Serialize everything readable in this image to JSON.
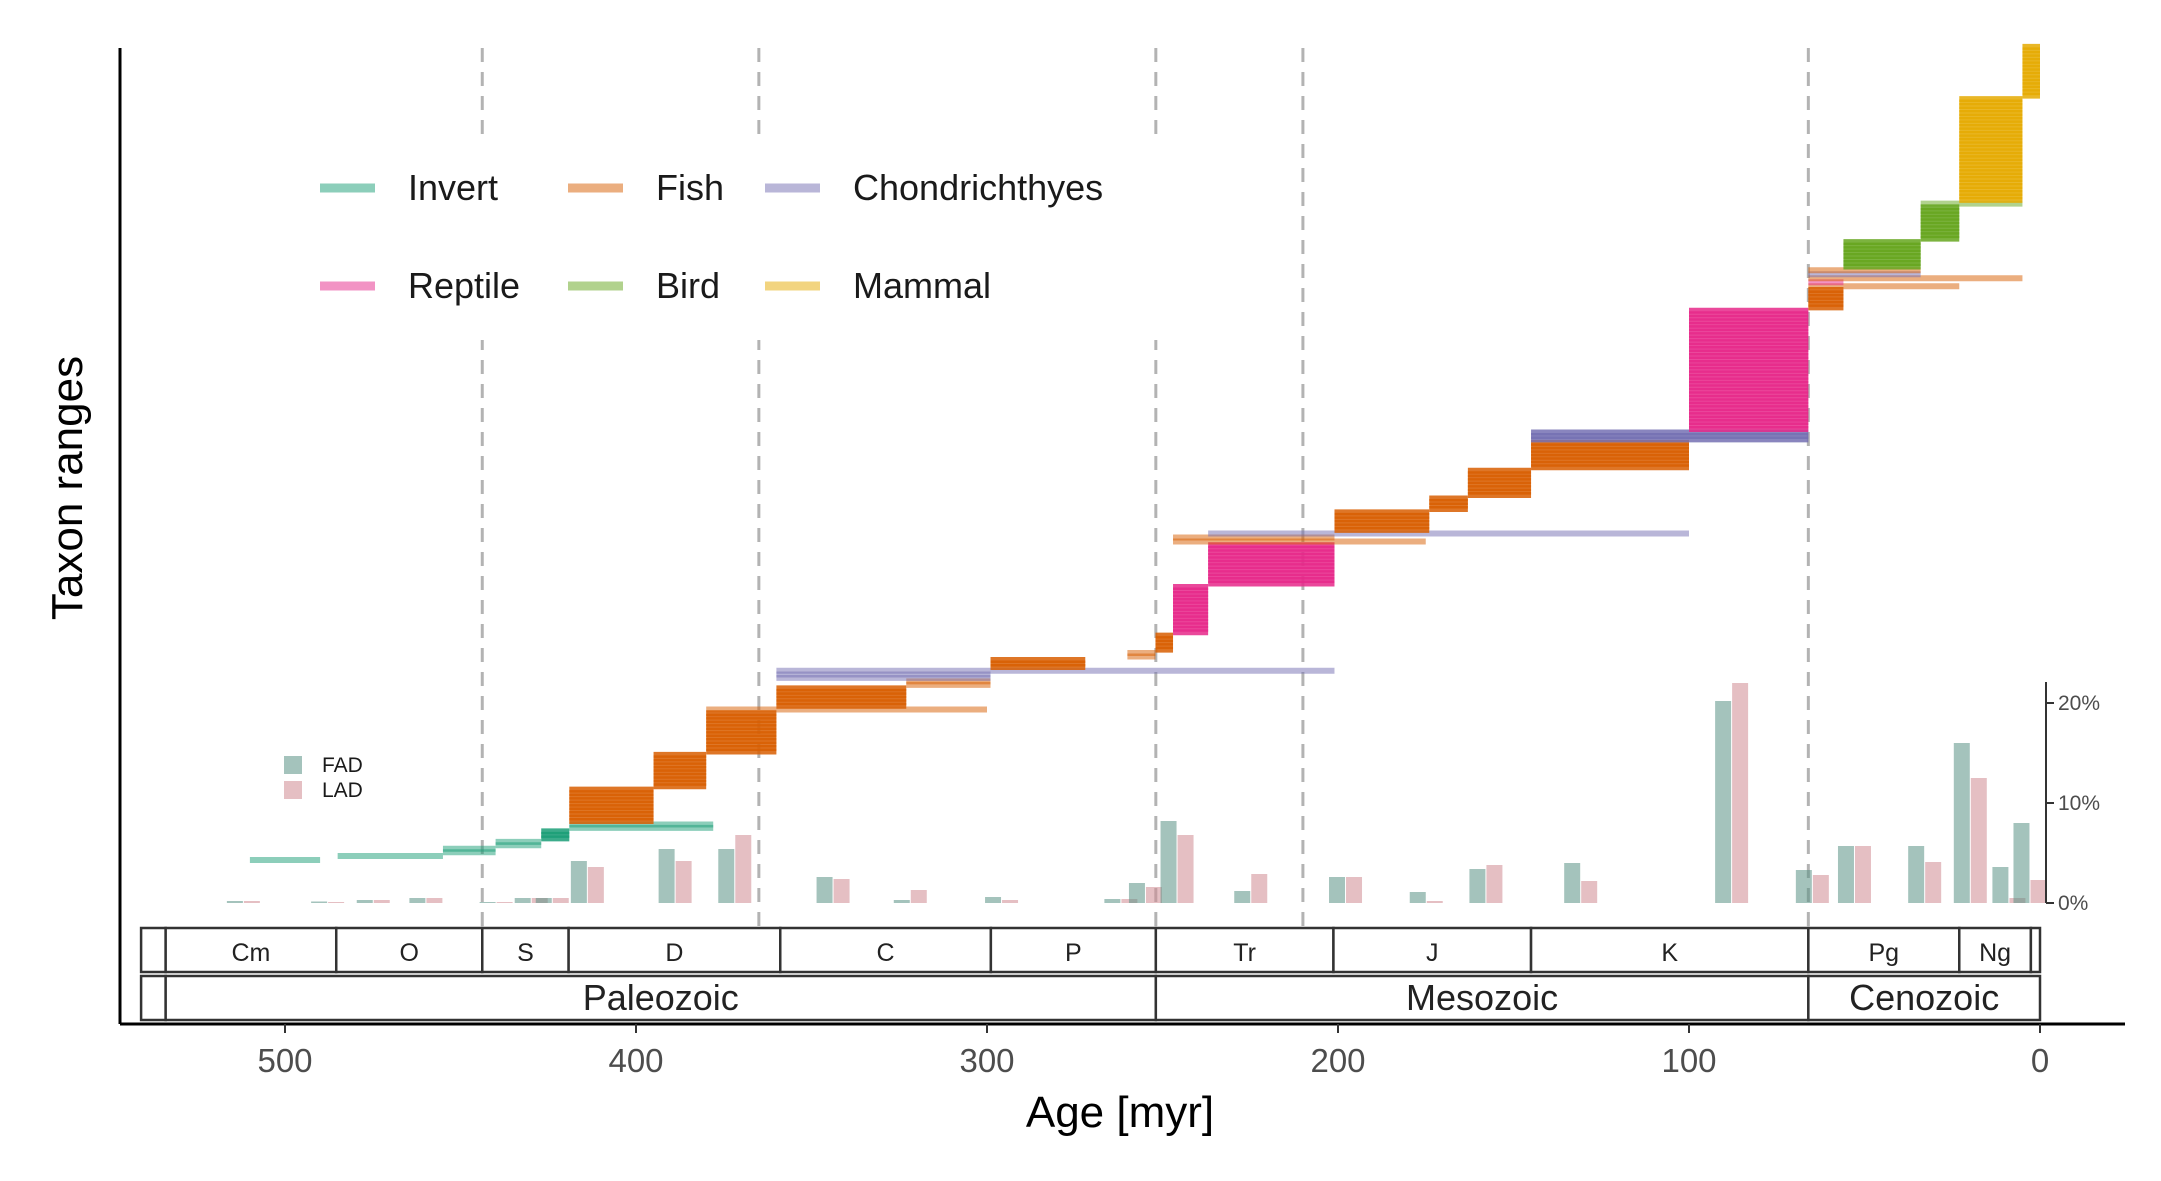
{
  "chart_data": {
    "type": "bar",
    "title": "",
    "xlabel": "Age [myr]",
    "ylabel": "Taxon ranges",
    "xlim": [
      545,
      -26
    ],
    "x_ticks": [
      500,
      400,
      300,
      200,
      100,
      0
    ],
    "grid": false,
    "mass_extinction_lines": [
      443.8,
      365,
      251.9,
      210,
      66
    ],
    "legend": {
      "placement": "top-left",
      "entries": [
        {
          "name": "Invert",
          "color": "#1b9e77"
        },
        {
          "name": "Fish",
          "color": "#d95f02"
        },
        {
          "name": "Chondrichthyes",
          "color": "#7570b3"
        },
        {
          "name": "Reptile",
          "color": "#e7298a"
        },
        {
          "name": "Bird",
          "color": "#66a61e"
        },
        {
          "name": "Mammal",
          "color": "#e6ab02"
        }
      ]
    },
    "ranges": [
      {
        "group": "Invert",
        "start": 510,
        "end": 490,
        "count": 1
      },
      {
        "group": "Invert",
        "start": 485,
        "end": 455,
        "count": 1
      },
      {
        "group": "Invert",
        "start": 455,
        "end": 440,
        "count": 2
      },
      {
        "group": "Invert",
        "start": 440,
        "end": 427,
        "count": 2
      },
      {
        "group": "Invert",
        "start": 427,
        "end": 419,
        "count": 3
      },
      {
        "group": "Invert",
        "start": 419,
        "end": 378,
        "count": 2
      },
      {
        "group": "Fish",
        "start": 419,
        "end": 395,
        "count": 10
      },
      {
        "group": "Fish",
        "start": 395,
        "end": 380,
        "count": 10
      },
      {
        "group": "Fish",
        "start": 380,
        "end": 360,
        "count": 12
      },
      {
        "group": "Fish",
        "start": 380,
        "end": 300,
        "count": 1
      },
      {
        "group": "Fish",
        "start": 360,
        "end": 323,
        "count": 6
      },
      {
        "group": "Fish",
        "start": 323,
        "end": 299,
        "count": 2
      },
      {
        "group": "Chondrichthyes",
        "start": 360,
        "end": 299,
        "count": 2
      },
      {
        "group": "Chondrichthyes",
        "start": 360,
        "end": 201,
        "count": 1
      },
      {
        "group": "Fish",
        "start": 299,
        "end": 272,
        "count": 3
      },
      {
        "group": "Fish",
        "start": 260,
        "end": 252,
        "count": 2
      },
      {
        "group": "Fish",
        "start": 252,
        "end": 247,
        "count": 5
      },
      {
        "group": "Reptile",
        "start": 247,
        "end": 237,
        "count": 14
      },
      {
        "group": "Reptile",
        "start": 237,
        "end": 201,
        "count": 12
      },
      {
        "group": "Fish",
        "start": 247,
        "end": 175,
        "count": 1
      },
      {
        "group": "Fish",
        "start": 247,
        "end": 201,
        "count": 1
      },
      {
        "group": "Chondrichthyes",
        "start": 237,
        "end": 100,
        "count": 1
      },
      {
        "group": "Fish",
        "start": 201,
        "end": 174,
        "count": 6
      },
      {
        "group": "Fish",
        "start": 174,
        "end": 163,
        "count": 4
      },
      {
        "group": "Fish",
        "start": 163,
        "end": 145,
        "count": 8
      },
      {
        "group": "Fish",
        "start": 145,
        "end": 100,
        "count": 8
      },
      {
        "group": "Chondrichthyes",
        "start": 145,
        "end": 66,
        "count": 3
      },
      {
        "group": "Reptile",
        "start": 100,
        "end": 66,
        "count": 35
      },
      {
        "group": "Fish",
        "start": 66,
        "end": 56,
        "count": 6
      },
      {
        "group": "Fish",
        "start": 66,
        "end": 23,
        "count": 1
      },
      {
        "group": "Reptile",
        "start": 66,
        "end": 56,
        "count": 1
      },
      {
        "group": "Fish",
        "start": 66,
        "end": 5,
        "count": 1
      },
      {
        "group": "Chondrichthyes",
        "start": 66,
        "end": 34,
        "count": 1
      },
      {
        "group": "Fish",
        "start": 66,
        "end": 34,
        "count": 1
      },
      {
        "group": "Bird",
        "start": 56,
        "end": 34,
        "count": 8
      },
      {
        "group": "Bird",
        "start": 34,
        "end": 23,
        "count": 10
      },
      {
        "group": "Bird",
        "start": 34,
        "end": 5,
        "count": 1
      },
      {
        "group": "Mammal",
        "start": 23,
        "end": 5,
        "count": 30
      },
      {
        "group": "Mammal",
        "start": 5,
        "end": 0,
        "count": 15
      }
    ],
    "periods": [
      {
        "label": "",
        "start": 541,
        "end": 534
      },
      {
        "label": "Cm",
        "start": 534,
        "end": 485.4
      },
      {
        "label": "O",
        "start": 485.4,
        "end": 443.8
      },
      {
        "label": "S",
        "start": 443.8,
        "end": 419.2
      },
      {
        "label": "D",
        "start": 419.2,
        "end": 358.9
      },
      {
        "label": "C",
        "start": 358.9,
        "end": 298.9
      },
      {
        "label": "P",
        "start": 298.9,
        "end": 251.9
      },
      {
        "label": "Tr",
        "start": 251.9,
        "end": 201.3
      },
      {
        "label": "J",
        "start": 201.3,
        "end": 145
      },
      {
        "label": "K",
        "start": 145,
        "end": 66
      },
      {
        "label": "Pg",
        "start": 66,
        "end": 23
      },
      {
        "label": "Ng",
        "start": 23,
        "end": 2.6
      },
      {
        "label": "",
        "start": 2.6,
        "end": 0
      }
    ],
    "eras": [
      {
        "label": "",
        "start": 541,
        "end": 534
      },
      {
        "label": "Paleozoic",
        "start": 534,
        "end": 251.9
      },
      {
        "label": "Mesozoic",
        "start": 251.9,
        "end": 66
      },
      {
        "label": "Cenozoic",
        "start": 66,
        "end": 0
      }
    ],
    "histogram": {
      "secondary_axis_ticks": [
        "0%",
        "10%",
        "20%"
      ],
      "ylim": [
        0,
        22
      ],
      "series": [
        {
          "name": "FAD",
          "color": "#5a9185"
        },
        {
          "name": "LAD",
          "color": "#cf8a92"
        }
      ],
      "bins": [
        {
          "age": 512,
          "FAD": 0.2,
          "LAD": 0.2
        },
        {
          "age": 488,
          "FAD": 0.15,
          "LAD": 0.1
        },
        {
          "age": 475,
          "FAD": 0.3,
          "LAD": 0.3
        },
        {
          "age": 460,
          "FAD": 0.5,
          "LAD": 0.5
        },
        {
          "age": 440,
          "FAD": 0.1,
          "LAD": 0.1
        },
        {
          "age": 430,
          "FAD": 0.5,
          "LAD": 0.5
        },
        {
          "age": 424,
          "FAD": 0.5,
          "LAD": 0.5
        },
        {
          "age": 414,
          "FAD": 4.2,
          "LAD": 3.6
        },
        {
          "age": 389,
          "FAD": 5.4,
          "LAD": 4.2
        },
        {
          "age": 372,
          "FAD": 5.4,
          "LAD": 6.8
        },
        {
          "age": 344,
          "FAD": 2.6,
          "LAD": 2.4
        },
        {
          "age": 322,
          "FAD": 0.3,
          "LAD": 1.3
        },
        {
          "age": 296,
          "FAD": 0.6,
          "LAD": 0.3
        },
        {
          "age": 262,
          "FAD": 0.4,
          "LAD": 0.4
        },
        {
          "age": 255,
          "FAD": 2.0,
          "LAD": 1.6
        },
        {
          "age": 246,
          "FAD": 8.2,
          "LAD": 6.8
        },
        {
          "age": 225,
          "FAD": 1.2,
          "LAD": 2.9
        },
        {
          "age": 198,
          "FAD": 2.6,
          "LAD": 2.6
        },
        {
          "age": 175,
          "FAD": 1.1,
          "LAD": 0.2
        },
        {
          "age": 158,
          "FAD": 3.4,
          "LAD": 3.8
        },
        {
          "age": 131,
          "FAD": 4.0,
          "LAD": 2.2
        },
        {
          "age": 88,
          "FAD": 20.2,
          "LAD": 22.0
        },
        {
          "age": 65,
          "FAD": 3.3,
          "LAD": 2.8
        },
        {
          "age": 53,
          "FAD": 5.7,
          "LAD": 5.7
        },
        {
          "age": 33,
          "FAD": 5.7,
          "LAD": 4.1
        },
        {
          "age": 20,
          "FAD": 16.0,
          "LAD": 12.5
        },
        {
          "age": 9,
          "FAD": 3.6,
          "LAD": 0.5
        },
        {
          "age": 3,
          "FAD": 8.0,
          "LAD": 2.3
        }
      ]
    }
  }
}
